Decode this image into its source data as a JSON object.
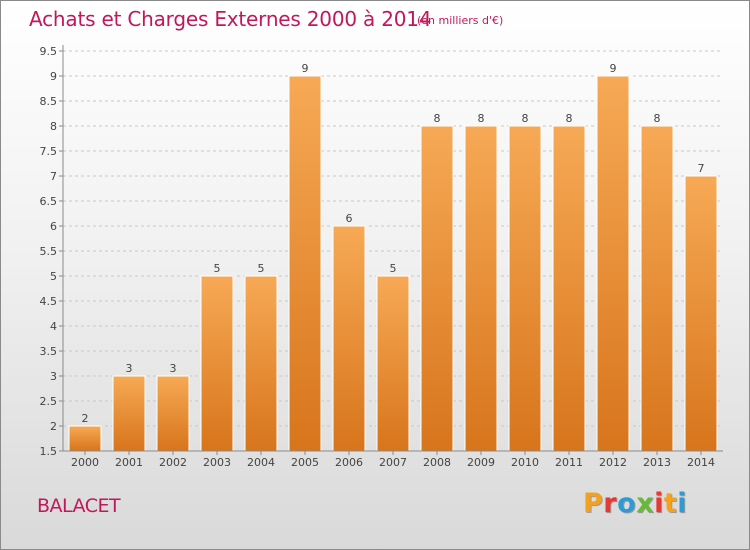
{
  "header": {
    "title": "Achats et Charges Externes 2000 à 2014",
    "subtitle": "(en milliers d'€)"
  },
  "footer": {
    "commune": "BALACET",
    "logo_text": "Proxiti"
  },
  "logo_colors": [
    "#f4a11d",
    "#e53935",
    "#2e9bd6",
    "#66bb35",
    "#e53935",
    "#f4a11d",
    "#2e9bd6"
  ],
  "colors": {
    "bar_top": "#f7a955",
    "bar_bottom": "#d7751c",
    "bar_edge": "#ffffff",
    "grid": "#c8c8c8",
    "axis": "#8a8a8a",
    "label": "#444444",
    "brand": "#c2185b"
  },
  "chart_data": {
    "type": "bar",
    "title": "Achats et Charges Externes 2000 à 2014",
    "subtitle": "(en milliers d'€)",
    "categories": [
      "2000",
      "2001",
      "2002",
      "2003",
      "2004",
      "2005",
      "2006",
      "2007",
      "2008",
      "2009",
      "2010",
      "2011",
      "2012",
      "2013",
      "2014"
    ],
    "values": [
      2,
      3,
      3,
      5,
      5,
      9,
      6,
      5,
      8,
      8,
      8,
      8,
      9,
      8,
      7
    ],
    "value_labels": [
      "2",
      "3",
      "3",
      "5",
      "5",
      "9",
      "6",
      "5",
      "8",
      "8",
      "8",
      "8",
      "9",
      "8",
      "7"
    ],
    "yticks": [
      "1.5",
      "2",
      "2.5",
      "3",
      "3.5",
      "4",
      "4.5",
      "5",
      "5.5",
      "6",
      "6.5",
      "7",
      "7.5",
      "8",
      "8.5",
      "9",
      "9.5"
    ],
    "ylim": [
      1.5,
      9.5
    ],
    "xlabel": "",
    "ylabel": "",
    "grid": true
  }
}
